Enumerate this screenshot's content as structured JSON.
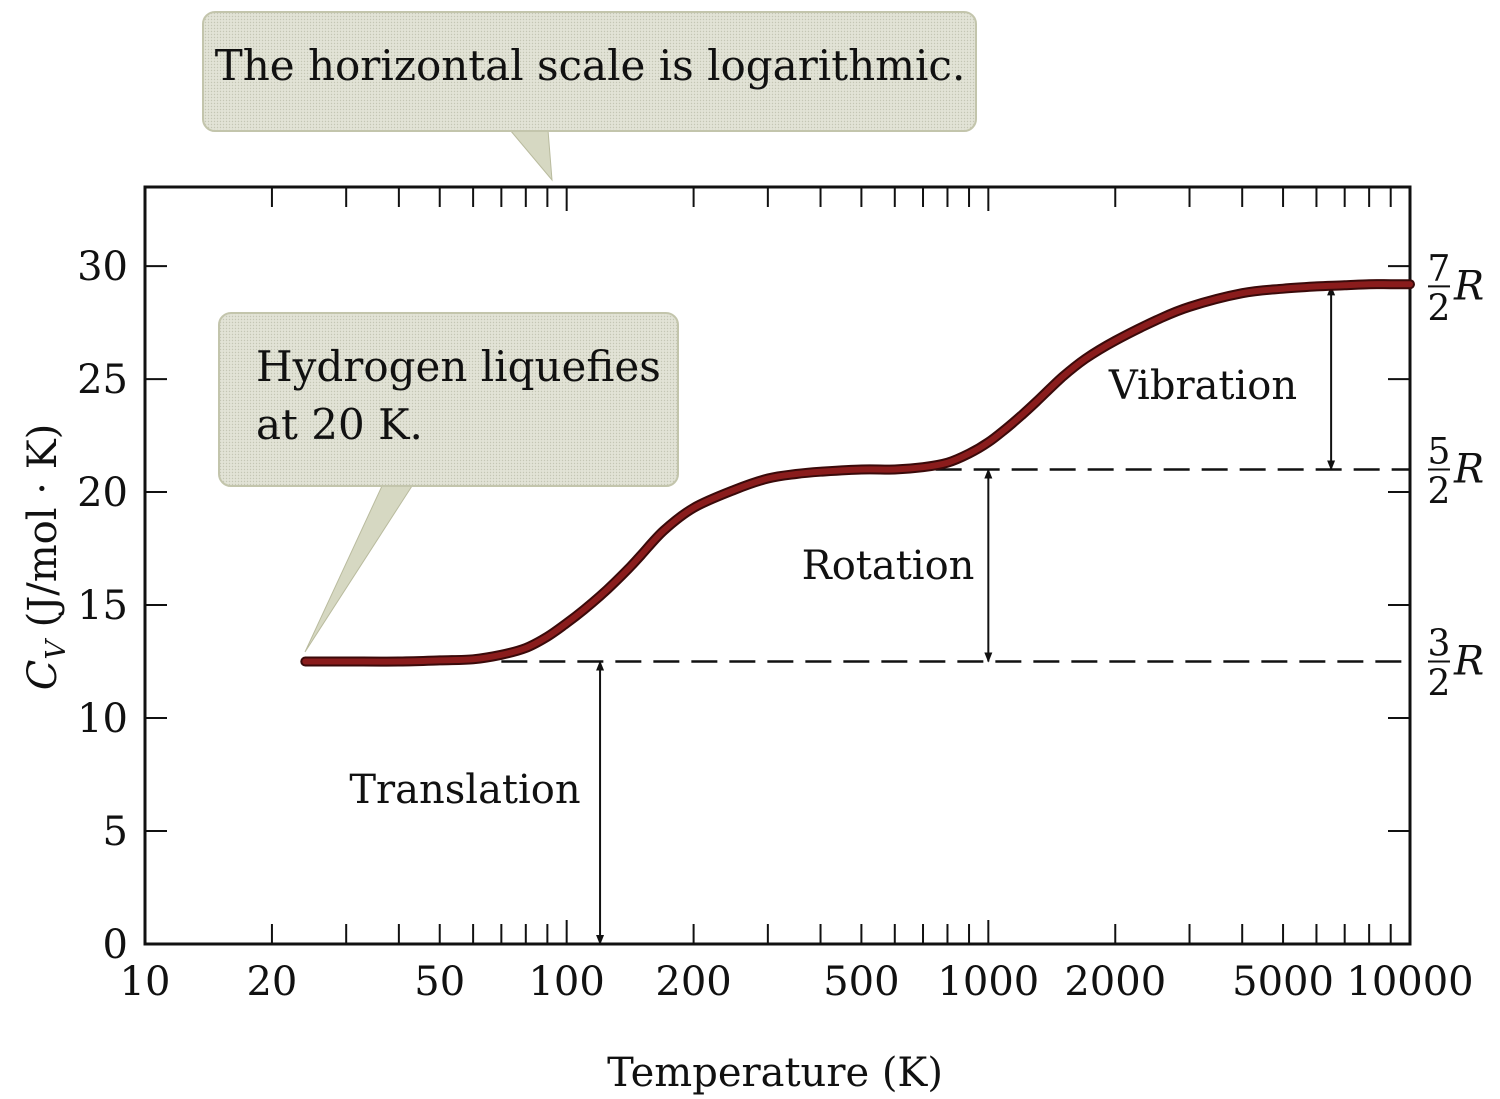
{
  "chart_data": {
    "type": "line",
    "xlabel": "Temperature (K)",
    "ylabel": {
      "symbol": "C",
      "subscript": "V",
      "unit": " (J/mol · K)"
    },
    "x_scale": "log",
    "xlim": [
      10,
      10000
    ],
    "ylim": [
      0,
      33.5
    ],
    "x_tick_values": [
      10,
      20,
      50,
      100,
      200,
      500,
      1000,
      2000,
      5000,
      10000
    ],
    "x_tick_labels": [
      "10",
      "20",
      "50",
      "100",
      "200",
      "500",
      "1000",
      "2000",
      "5000",
      "10000"
    ],
    "y_tick_values": [
      0,
      5,
      10,
      15,
      20,
      25,
      30
    ],
    "y_tick_labels": [
      "0",
      "5",
      "10",
      "15",
      "20",
      "25",
      "30"
    ],
    "grid": false,
    "series": [
      {
        "color": "#8a1c1c",
        "x": [
          24,
          30,
          40,
          50,
          60,
          70,
          80,
          90,
          100,
          110,
          120,
          130,
          140,
          150,
          170,
          200,
          250,
          300,
          350,
          400,
          500,
          600,
          700,
          800,
          900,
          1000,
          1100,
          1200,
          1300,
          1500,
          1700,
          2000,
          2500,
          3000,
          4000,
          5000,
          6000,
          7000,
          8000,
          9000,
          10000
        ],
        "y": [
          12.5,
          12.5,
          12.5,
          12.55,
          12.6,
          12.8,
          13.1,
          13.6,
          14.2,
          14.8,
          15.4,
          16.0,
          16.6,
          17.2,
          18.3,
          19.3,
          20.1,
          20.6,
          20.8,
          20.9,
          21.0,
          21.0,
          21.1,
          21.3,
          21.7,
          22.2,
          22.8,
          23.4,
          24.0,
          25.1,
          25.9,
          26.7,
          27.6,
          28.2,
          28.8,
          29.0,
          29.1,
          29.15,
          29.2,
          29.2,
          29.2
        ]
      }
    ],
    "reference_levels": [
      {
        "value": 12.5,
        "label_numerator": "3",
        "label_denominator": "2",
        "label_symbol": "R",
        "dash_from_x": 70
      },
      {
        "value": 21.0,
        "label_numerator": "5",
        "label_denominator": "2",
        "label_symbol": "R",
        "dash_from_x": 750
      },
      {
        "value": 29.1,
        "label_numerator": "7",
        "label_denominator": "2",
        "label_symbol": "R",
        "dash_from_x": null
      }
    ],
    "annotations": [
      {
        "text": "Translation",
        "arrow_x": 120,
        "from": 0,
        "to": 12.5
      },
      {
        "text": "Rotation",
        "arrow_x": 1000,
        "from": 12.5,
        "to": 21.0
      },
      {
        "text": "Vibration",
        "arrow_x": 6500,
        "from": 21.0,
        "to": 29.1
      }
    ],
    "callouts": [
      {
        "lines": [
          "The horizontal scale is logarithmic."
        ]
      },
      {
        "lines": [
          "Hydrogen liquefies",
          "at 20 K."
        ]
      }
    ]
  }
}
